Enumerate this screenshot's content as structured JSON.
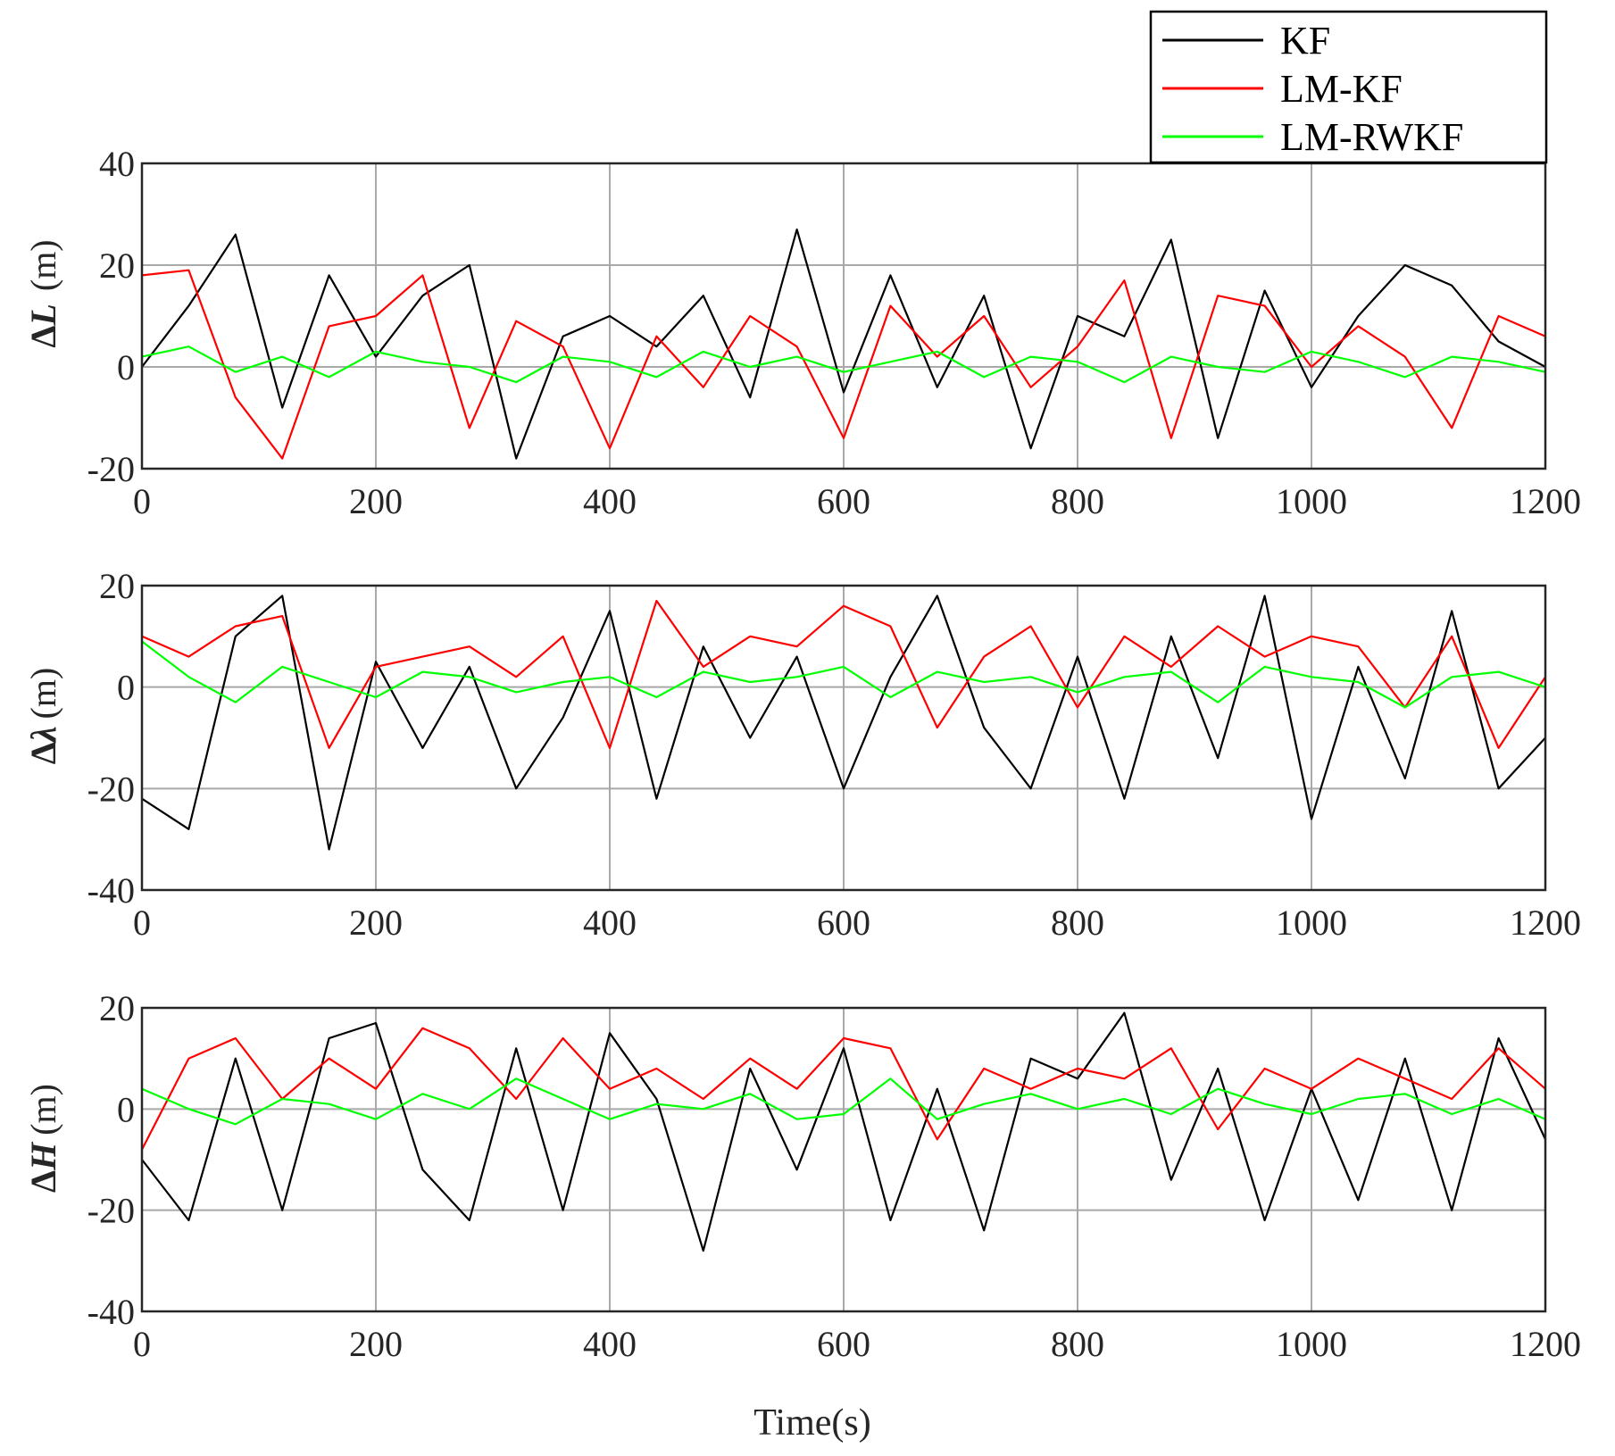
{
  "figure": {
    "xlabel": "Time(s)"
  },
  "legend": [
    {
      "label": "KF",
      "color": "#000000"
    },
    {
      "label": "LM-KF",
      "color": "#ff0000"
    },
    {
      "label": "LM-RWKF",
      "color": "#00ff00"
    }
  ],
  "chart_data": [
    {
      "type": "line",
      "ylabel_main": "Δ",
      "ylabel_var": "L",
      "ylabel_unit": "(m)",
      "xlim": [
        0,
        1200
      ],
      "ylim": [
        -20,
        40
      ],
      "xticks": [
        "0",
        "200",
        "400",
        "600",
        "800",
        "1000",
        "1200"
      ],
      "yticks": [
        "40",
        "20",
        "0",
        "-20"
      ],
      "x": [
        0,
        40,
        80,
        120,
        160,
        200,
        240,
        280,
        320,
        360,
        400,
        440,
        480,
        520,
        560,
        600,
        640,
        680,
        720,
        760,
        800,
        840,
        880,
        920,
        960,
        1000,
        1040,
        1080,
        1120,
        1160,
        1200
      ],
      "series": [
        {
          "name": "KF",
          "values": [
            0,
            12,
            26,
            -8,
            18,
            2,
            14,
            20,
            -18,
            6,
            10,
            4,
            14,
            -6,
            27,
            -5,
            18,
            -4,
            14,
            -16,
            10,
            6,
            25,
            -14,
            15,
            -4,
            10,
            20,
            16,
            5,
            0
          ]
        },
        {
          "name": "LM-KF",
          "values": [
            18,
            19,
            -6,
            -18,
            8,
            10,
            18,
            -12,
            9,
            4,
            -16,
            6,
            -4,
            10,
            4,
            -14,
            12,
            2,
            10,
            -4,
            4,
            17,
            -14,
            14,
            12,
            0,
            8,
            2,
            -12,
            10,
            6
          ]
        },
        {
          "name": "LM-RWKF",
          "values": [
            2,
            4,
            -1,
            2,
            -2,
            3,
            1,
            0,
            -3,
            2,
            1,
            -2,
            3,
            0,
            2,
            -1,
            1,
            3,
            -2,
            2,
            1,
            -3,
            2,
            0,
            -1,
            3,
            1,
            -2,
            2,
            1,
            -1
          ]
        }
      ]
    },
    {
      "type": "line",
      "ylabel_main": "Δ",
      "ylabel_var": "λ",
      "ylabel_unit": "(m)",
      "xlim": [
        0,
        1200
      ],
      "ylim": [
        -40,
        20
      ],
      "xticks": [
        "0",
        "200",
        "400",
        "600",
        "800",
        "1000",
        "1200"
      ],
      "yticks": [
        "20",
        "0",
        "-20",
        "-40"
      ],
      "x": [
        0,
        40,
        80,
        120,
        160,
        200,
        240,
        280,
        320,
        360,
        400,
        440,
        480,
        520,
        560,
        600,
        640,
        680,
        720,
        760,
        800,
        840,
        880,
        920,
        960,
        1000,
        1040,
        1080,
        1120,
        1160,
        1200
      ],
      "series": [
        {
          "name": "KF",
          "values": [
            -22,
            -28,
            10,
            18,
            -32,
            5,
            -12,
            4,
            -20,
            -6,
            15,
            -22,
            8,
            -10,
            6,
            -20,
            2,
            18,
            -8,
            -20,
            6,
            -22,
            10,
            -14,
            18,
            -26,
            4,
            -18,
            15,
            -20,
            -10
          ]
        },
        {
          "name": "LM-KF",
          "values": [
            10,
            6,
            12,
            14,
            -12,
            4,
            6,
            8,
            2,
            10,
            -12,
            17,
            4,
            10,
            8,
            16,
            12,
            -8,
            6,
            12,
            -4,
            10,
            4,
            12,
            6,
            10,
            8,
            -4,
            10,
            -12,
            2
          ]
        },
        {
          "name": "LM-RWKF",
          "values": [
            9,
            2,
            -3,
            4,
            1,
            -2,
            3,
            2,
            -1,
            1,
            2,
            -2,
            3,
            1,
            2,
            4,
            -2,
            3,
            1,
            2,
            -1,
            2,
            3,
            -3,
            4,
            2,
            1,
            -4,
            2,
            3,
            0
          ]
        }
      ]
    },
    {
      "type": "line",
      "ylabel_main": "Δ",
      "ylabel_var": "H",
      "ylabel_unit": "(m)",
      "xlim": [
        0,
        1200
      ],
      "ylim": [
        -40,
        20
      ],
      "xticks": [
        "0",
        "200",
        "400",
        "600",
        "800",
        "1000",
        "1200"
      ],
      "yticks": [
        "20",
        "0",
        "-20",
        "-40"
      ],
      "x": [
        0,
        40,
        80,
        120,
        160,
        200,
        240,
        280,
        320,
        360,
        400,
        440,
        480,
        520,
        560,
        600,
        640,
        680,
        720,
        760,
        800,
        840,
        880,
        920,
        960,
        1000,
        1040,
        1080,
        1120,
        1160,
        1200
      ],
      "series": [
        {
          "name": "KF",
          "values": [
            -10,
            -22,
            10,
            -20,
            14,
            17,
            -12,
            -22,
            12,
            -20,
            15,
            2,
            -28,
            8,
            -12,
            12,
            -22,
            4,
            -24,
            10,
            6,
            19,
            -14,
            8,
            -22,
            4,
            -18,
            10,
            -20,
            14,
            -6
          ]
        },
        {
          "name": "LM-KF",
          "values": [
            -8,
            10,
            14,
            2,
            10,
            4,
            16,
            12,
            2,
            14,
            4,
            8,
            2,
            10,
            4,
            14,
            12,
            -6,
            8,
            4,
            8,
            6,
            12,
            -4,
            8,
            4,
            10,
            6,
            2,
            12,
            4
          ]
        },
        {
          "name": "LM-RWKF",
          "values": [
            4,
            0,
            -3,
            2,
            1,
            -2,
            3,
            0,
            6,
            2,
            -2,
            1,
            0,
            3,
            -2,
            -1,
            6,
            -2,
            1,
            3,
            0,
            2,
            -1,
            4,
            1,
            -1,
            2,
            3,
            -1,
            2,
            -2
          ]
        }
      ]
    }
  ]
}
